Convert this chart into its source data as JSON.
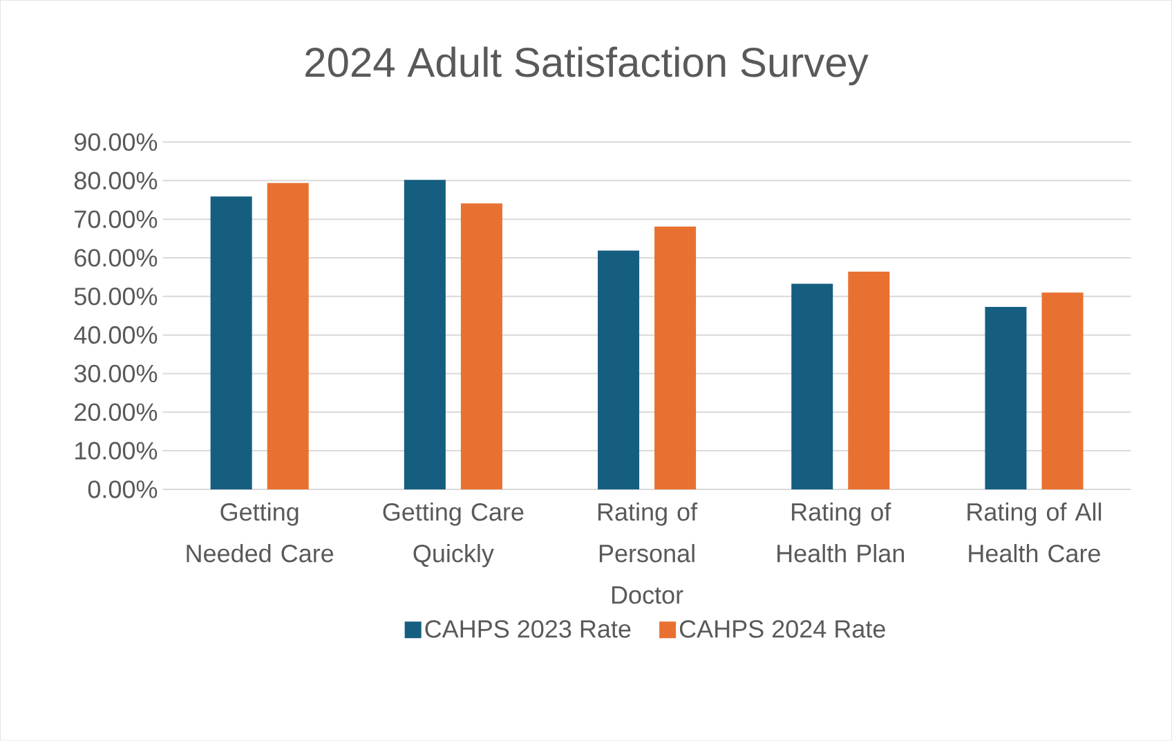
{
  "chart_data": {
    "type": "bar",
    "title": "2024 Adult Satisfaction Survey",
    "categories": [
      "Getting Needed Care",
      "Getting Care Quickly",
      "Rating of Personal Doctor",
      "Rating of Health Plan",
      "Rating of All Health Care"
    ],
    "series": [
      {
        "name": "CAHPS 2023 Rate",
        "color": "#155e80",
        "values": [
          75.9,
          80.2,
          61.9,
          53.3,
          47.3
        ]
      },
      {
        "name": "CAHPS 2024 Rate",
        "color": "#e87131",
        "values": [
          79.4,
          74.1,
          68.1,
          56.4,
          51.0
        ]
      }
    ],
    "ylim": [
      0,
      90
    ],
    "yticks": [
      {
        "value": 0,
        "label": "0.00%"
      },
      {
        "value": 10,
        "label": "10.00%"
      },
      {
        "value": 20,
        "label": "20.00%"
      },
      {
        "value": 30,
        "label": "30.00%"
      },
      {
        "value": 40,
        "label": "40.00%"
      },
      {
        "value": 50,
        "label": "50.00%"
      },
      {
        "value": 60,
        "label": "60.00%"
      },
      {
        "value": 70,
        "label": "70.00%"
      },
      {
        "value": 80,
        "label": "80.00%"
      },
      {
        "value": 90,
        "label": "90.00%"
      }
    ],
    "grid": "y",
    "legend": "bottom"
  }
}
